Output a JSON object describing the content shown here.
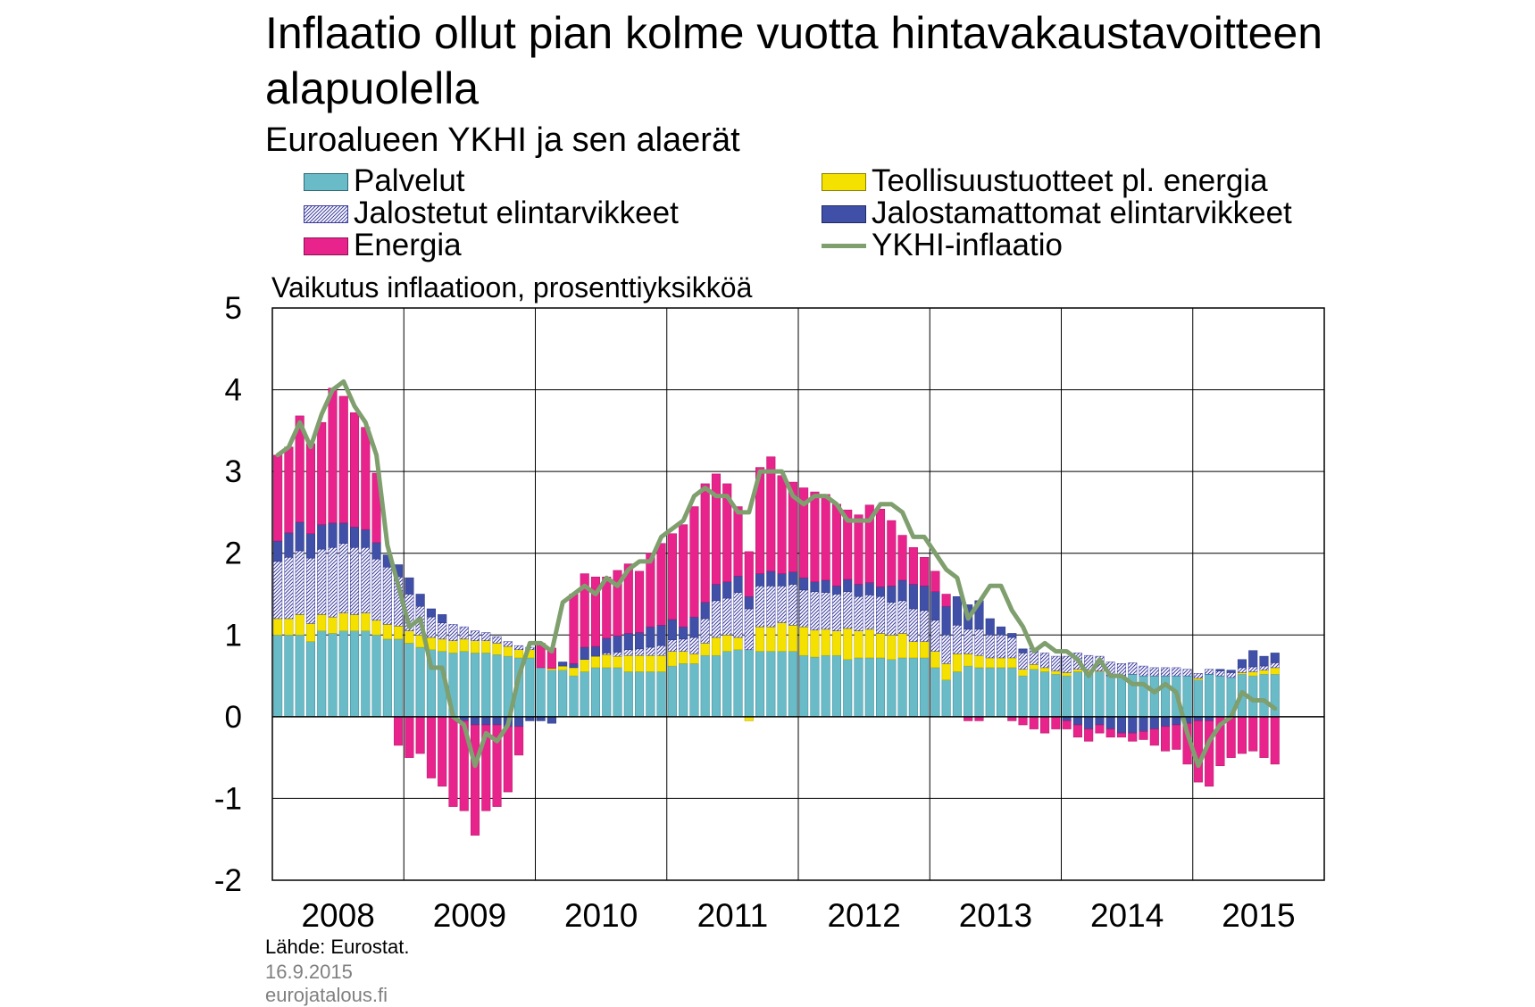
{
  "title": "Inflaatio ollut pian kolme vuotta hintavakaustavoitteen alapuolella",
  "subtitle": "Euroalueen YKHI ja sen alaerät",
  "unit_label": "Vaikutus inflaatioon, prosenttiyksikköä",
  "legend": [
    {
      "label": "Palvelut",
      "color": "#6ABBC8",
      "pattern": "solid"
    },
    {
      "label": "Teollisuustuotteet pl. energia",
      "color": "#F4E100",
      "pattern": "solid"
    },
    {
      "label": "Jalostetut elintarvikkeet",
      "color": "#3A3AA0",
      "pattern": "hatch"
    },
    {
      "label": "Jalostamattomat elintarvikkeet",
      "color": "#4050A8",
      "pattern": "solid"
    },
    {
      "label": "Energia",
      "color": "#E8238C",
      "pattern": "solid"
    },
    {
      "label": "YKHI-inflaatio",
      "color": "#7F9F6E",
      "pattern": "line"
    }
  ],
  "footer": {
    "source": "Lähde: Eurostat.",
    "date": "16.9.2015",
    "site": "eurojatalous.fi"
  },
  "chart_data": {
    "type": "bar",
    "stacked": true,
    "title": "Inflaatio ollut pian kolme vuotta hintavakaustavoitteen alapuolella",
    "subtitle": "Euroalueen YKHI ja sen alaerät",
    "ylabel": "Vaikutus inflaatioon, prosenttiyksikköä",
    "ylim": [
      -2,
      5
    ],
    "yticks": [
      -2,
      -1,
      0,
      1,
      2,
      3,
      4,
      5
    ],
    "xticks": [
      "2008",
      "2009",
      "2010",
      "2011",
      "2012",
      "2013",
      "2014",
      "2015"
    ],
    "grid": true,
    "legend_position": "top",
    "source": "Lähde: Eurostat.",
    "x": [
      "2008-01",
      "2008-02",
      "2008-03",
      "2008-04",
      "2008-05",
      "2008-06",
      "2008-07",
      "2008-08",
      "2008-09",
      "2008-10",
      "2008-11",
      "2008-12",
      "2009-01",
      "2009-02",
      "2009-03",
      "2009-04",
      "2009-05",
      "2009-06",
      "2009-07",
      "2009-08",
      "2009-09",
      "2009-10",
      "2009-11",
      "2009-12",
      "2010-01",
      "2010-02",
      "2010-03",
      "2010-04",
      "2010-05",
      "2010-06",
      "2010-07",
      "2010-08",
      "2010-09",
      "2010-10",
      "2010-11",
      "2010-12",
      "2011-01",
      "2011-02",
      "2011-03",
      "2011-04",
      "2011-05",
      "2011-06",
      "2011-07",
      "2011-08",
      "2011-09",
      "2011-10",
      "2011-11",
      "2011-12",
      "2012-01",
      "2012-02",
      "2012-03",
      "2012-04",
      "2012-05",
      "2012-06",
      "2012-07",
      "2012-08",
      "2012-09",
      "2012-10",
      "2012-11",
      "2012-12",
      "2013-01",
      "2013-02",
      "2013-03",
      "2013-04",
      "2013-05",
      "2013-06",
      "2013-07",
      "2013-08",
      "2013-09",
      "2013-10",
      "2013-11",
      "2013-12",
      "2014-01",
      "2014-02",
      "2014-03",
      "2014-04",
      "2014-05",
      "2014-06",
      "2014-07",
      "2014-08",
      "2014-09",
      "2014-10",
      "2014-11",
      "2014-12",
      "2015-01",
      "2015-02",
      "2015-03",
      "2015-04",
      "2015-05",
      "2015-06",
      "2015-07",
      "2015-08"
    ],
    "series": [
      {
        "name": "Palvelut",
        "color": "#6ABBC8",
        "values": [
          1.0,
          1.0,
          1.0,
          0.92,
          1.05,
          1.02,
          1.05,
          1.05,
          1.05,
          1.0,
          0.95,
          0.95,
          0.9,
          0.85,
          0.82,
          0.8,
          0.78,
          0.8,
          0.78,
          0.78,
          0.76,
          0.74,
          0.72,
          0.72,
          0.6,
          0.57,
          0.57,
          0.5,
          0.55,
          0.6,
          0.6,
          0.6,
          0.55,
          0.55,
          0.55,
          0.55,
          0.62,
          0.65,
          0.65,
          0.75,
          0.75,
          0.8,
          0.82,
          0.82,
          0.8,
          0.8,
          0.8,
          0.8,
          0.75,
          0.73,
          0.75,
          0.75,
          0.7,
          0.72,
          0.72,
          0.72,
          0.7,
          0.72,
          0.72,
          0.72,
          0.6,
          0.45,
          0.55,
          0.62,
          0.6,
          0.6,
          0.6,
          0.6,
          0.5,
          0.58,
          0.55,
          0.52,
          0.5,
          0.55,
          0.55,
          0.55,
          0.5,
          0.5,
          0.52,
          0.5,
          0.5,
          0.5,
          0.5,
          0.5,
          0.45,
          0.52,
          0.5,
          0.48,
          0.52,
          0.5,
          0.52,
          0.52
        ]
      },
      {
        "name": "Teollisuustuotteet pl. energia",
        "color": "#F4E100",
        "values": [
          0.2,
          0.2,
          0.25,
          0.22,
          0.2,
          0.2,
          0.22,
          0.2,
          0.22,
          0.18,
          0.18,
          0.16,
          0.15,
          0.15,
          0.15,
          0.15,
          0.15,
          0.15,
          0.15,
          0.15,
          0.14,
          0.12,
          0.1,
          0.1,
          0.0,
          0.02,
          0.05,
          0.1,
          0.15,
          0.14,
          0.16,
          0.14,
          0.2,
          0.2,
          0.2,
          0.2,
          0.18,
          0.15,
          0.12,
          0.15,
          0.22,
          0.2,
          0.15,
          -0.05,
          0.3,
          0.3,
          0.35,
          0.32,
          0.35,
          0.33,
          0.32,
          0.3,
          0.38,
          0.33,
          0.35,
          0.3,
          0.3,
          0.3,
          0.2,
          0.2,
          0.2,
          0.2,
          0.22,
          0.15,
          0.15,
          0.12,
          0.12,
          0.12,
          0.08,
          0.06,
          0.05,
          0.04,
          0.04,
          0.03,
          0.02,
          0.01,
          0.0,
          0.0,
          0.0,
          0.0,
          0.0,
          0.0,
          0.0,
          0.0,
          0.02,
          0.0,
          0.0,
          0.0,
          0.02,
          0.05,
          0.05,
          0.08
        ]
      },
      {
        "name": "Jalostetut elintarvikkeet",
        "color": "#3A3AA0",
        "values": [
          0.7,
          0.75,
          0.78,
          0.8,
          0.8,
          0.85,
          0.85,
          0.82,
          0.8,
          0.75,
          0.7,
          0.6,
          0.45,
          0.35,
          0.25,
          0.2,
          0.2,
          0.15,
          0.12,
          0.1,
          0.08,
          0.06,
          0.05,
          0.03,
          0.0,
          0.0,
          0.0,
          0.0,
          0.0,
          0.0,
          0.02,
          0.05,
          0.07,
          0.08,
          0.1,
          0.12,
          0.14,
          0.15,
          0.2,
          0.3,
          0.45,
          0.45,
          0.55,
          0.5,
          0.5,
          0.5,
          0.45,
          0.5,
          0.45,
          0.47,
          0.45,
          0.45,
          0.45,
          0.42,
          0.42,
          0.45,
          0.4,
          0.4,
          0.4,
          0.38,
          0.38,
          0.35,
          0.35,
          0.3,
          0.32,
          0.28,
          0.28,
          0.25,
          0.2,
          0.2,
          0.18,
          0.18,
          0.2,
          0.2,
          0.18,
          0.18,
          0.17,
          0.15,
          0.14,
          0.12,
          0.1,
          0.1,
          0.1,
          0.08,
          0.06,
          0.06,
          0.06,
          0.06,
          0.06,
          0.06,
          0.05,
          0.06
        ]
      },
      {
        "name": "Jalostamattomat elintarvikkeet",
        "color": "#4050A8",
        "values": [
          0.25,
          0.3,
          0.35,
          0.3,
          0.3,
          0.3,
          0.25,
          0.25,
          0.22,
          0.2,
          0.15,
          0.15,
          0.2,
          0.15,
          0.1,
          0.1,
          0.0,
          -0.05,
          -0.1,
          -0.1,
          -0.1,
          -0.12,
          -0.12,
          -0.05,
          -0.05,
          -0.08,
          0.05,
          0.05,
          0.15,
          0.12,
          0.18,
          0.2,
          0.2,
          0.2,
          0.25,
          0.25,
          0.25,
          0.15,
          0.25,
          0.2,
          0.2,
          0.2,
          0.2,
          0.15,
          0.15,
          0.18,
          0.15,
          0.15,
          0.15,
          0.12,
          0.15,
          0.1,
          0.15,
          0.15,
          0.15,
          0.12,
          0.2,
          0.25,
          0.3,
          0.3,
          0.35,
          0.35,
          0.35,
          0.3,
          0.35,
          0.2,
          0.1,
          0.05,
          0.05,
          0.0,
          0.0,
          0.0,
          -0.05,
          -0.1,
          -0.15,
          -0.1,
          -0.15,
          -0.2,
          -0.2,
          -0.18,
          -0.15,
          -0.12,
          -0.1,
          -0.08,
          -0.05,
          -0.05,
          0.02,
          0.03,
          0.1,
          0.2,
          0.12,
          0.12
        ]
      },
      {
        "name": "Energia",
        "color": "#E8238C",
        "values": [
          1.05,
          1.05,
          1.3,
          1.1,
          1.25,
          1.65,
          1.55,
          1.4,
          1.25,
          0.85,
          0.0,
          -0.35,
          -0.5,
          -0.45,
          -0.75,
          -0.85,
          -1.1,
          -1.1,
          -1.35,
          -1.05,
          -1.0,
          -0.8,
          -0.35,
          0.0,
          0.3,
          0.25,
          0.0,
          0.85,
          0.9,
          0.85,
          0.75,
          0.8,
          0.85,
          0.75,
          0.9,
          1.0,
          1.05,
          1.25,
          1.35,
          1.45,
          1.35,
          1.2,
          0.85,
          0.55,
          1.3,
          1.4,
          1.2,
          1.1,
          1.1,
          1.1,
          1.05,
          1.0,
          0.85,
          0.85,
          0.95,
          0.95,
          0.8,
          0.55,
          0.45,
          0.35,
          0.25,
          0.15,
          0.0,
          -0.05,
          -0.05,
          0.0,
          0.0,
          -0.05,
          -0.1,
          -0.15,
          -0.2,
          -0.15,
          -0.1,
          -0.15,
          -0.15,
          -0.1,
          -0.1,
          -0.05,
          -0.1,
          -0.1,
          -0.2,
          -0.3,
          -0.3,
          -0.5,
          -0.75,
          -0.8,
          -0.6,
          -0.5,
          -0.45,
          -0.42,
          -0.5,
          -0.58
        ]
      }
    ],
    "line": {
      "name": "YKHI-inflaatio",
      "color": "#7F9F6E",
      "values": [
        3.2,
        3.3,
        3.6,
        3.3,
        3.7,
        4.0,
        4.1,
        3.8,
        3.6,
        3.2,
        2.1,
        1.6,
        1.1,
        1.2,
        0.6,
        0.6,
        0.0,
        -0.1,
        -0.6,
        -0.2,
        -0.3,
        -0.1,
        0.5,
        0.9,
        0.9,
        0.8,
        1.4,
        1.5,
        1.6,
        1.5,
        1.7,
        1.6,
        1.8,
        1.9,
        1.9,
        2.2,
        2.3,
        2.4,
        2.7,
        2.8,
        2.7,
        2.7,
        2.5,
        2.5,
        3.0,
        3.0,
        3.0,
        2.7,
        2.6,
        2.7,
        2.7,
        2.6,
        2.4,
        2.4,
        2.4,
        2.6,
        2.6,
        2.5,
        2.2,
        2.2,
        2.0,
        1.8,
        1.7,
        1.2,
        1.4,
        1.6,
        1.6,
        1.3,
        1.1,
        0.8,
        0.9,
        0.8,
        0.8,
        0.7,
        0.5,
        0.7,
        0.5,
        0.5,
        0.4,
        0.4,
        0.3,
        0.4,
        0.3,
        -0.2,
        -0.6,
        -0.3,
        -0.1,
        0.0,
        0.3,
        0.2,
        0.2,
        0.1
      ]
    }
  }
}
